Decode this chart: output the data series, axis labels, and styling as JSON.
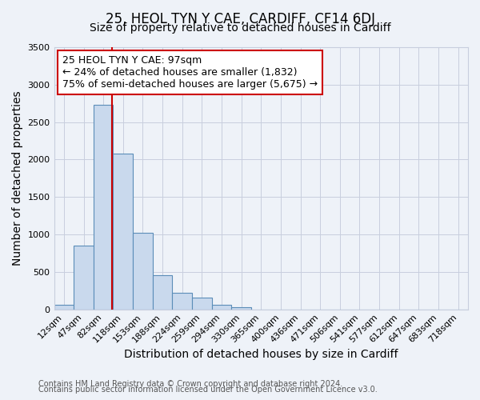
{
  "title": "25, HEOL TYN Y CAE, CARDIFF, CF14 6DJ",
  "subtitle": "Size of property relative to detached houses in Cardiff",
  "xlabel": "Distribution of detached houses by size in Cardiff",
  "ylabel": "Number of detached properties",
  "bar_labels": [
    "12sqm",
    "47sqm",
    "82sqm",
    "118sqm",
    "153sqm",
    "188sqm",
    "224sqm",
    "259sqm",
    "294sqm",
    "330sqm",
    "365sqm",
    "400sqm",
    "436sqm",
    "471sqm",
    "506sqm",
    "541sqm",
    "577sqm",
    "612sqm",
    "647sqm",
    "683sqm",
    "718sqm"
  ],
  "bar_values": [
    55,
    855,
    2730,
    2080,
    1020,
    460,
    215,
    155,
    55,
    30,
    0,
    0,
    0,
    0,
    0,
    0,
    0,
    0,
    0,
    0,
    0
  ],
  "bar_color": "#c9d9ed",
  "bar_edge_color": "#5b8db8",
  "ylim": [
    0,
    3500
  ],
  "yticks": [
    0,
    500,
    1000,
    1500,
    2000,
    2500,
    3000,
    3500
  ],
  "property_line_color": "#cc0000",
  "annotation_title": "25 HEOL TYN Y CAE: 97sqm",
  "annotation_line1": "← 24% of detached houses are smaller (1,832)",
  "annotation_line2": "75% of semi-detached houses are larger (5,675) →",
  "annotation_box_edge_color": "#cc0000",
  "footer1": "Contains HM Land Registry data © Crown copyright and database right 2024.",
  "footer2": "Contains public sector information licensed under the Open Government Licence v3.0.",
  "background_color": "#eef2f8",
  "plot_bg_color": "#eef2f8",
  "grid_color": "#c8cede",
  "title_fontsize": 12,
  "subtitle_fontsize": 10,
  "axis_label_fontsize": 10,
  "tick_fontsize": 8,
  "footer_fontsize": 7,
  "annotation_fontsize": 9
}
